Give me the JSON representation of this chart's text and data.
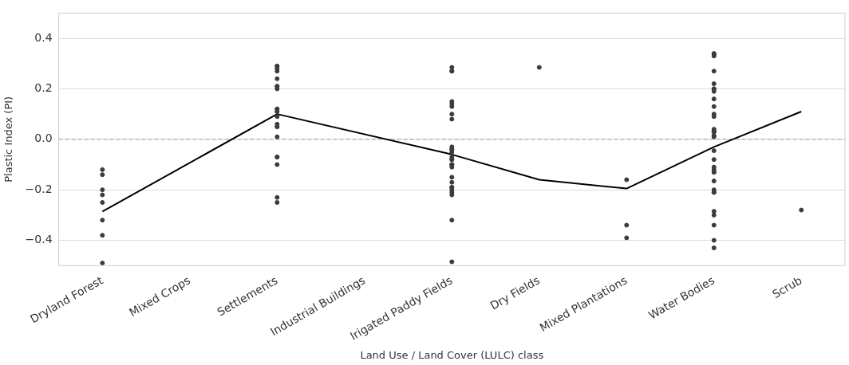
{
  "chart_data": {
    "type": "scatter",
    "xlabel": "Land Use / Land Cover (LULC) class",
    "ylabel": "Plastic Index (PI)",
    "categories": [
      "Dryland Forest",
      "Mixed Crops",
      "Settlements",
      "Industrial Buildings",
      "Irigated Paddy Fields",
      "Dry Fields",
      "Mixed Plantations",
      "Water Bodies",
      "Scrub"
    ],
    "ylim": [
      -0.5,
      0.5
    ],
    "yticks": [
      {
        "value": -0.4,
        "label": "−0.4"
      },
      {
        "value": -0.2,
        "label": "−0.2"
      },
      {
        "value": 0,
        "label": "0.0"
      },
      {
        "value": 0.2,
        "label": "0.2"
      },
      {
        "value": 0.4,
        "label": "0.4"
      }
    ],
    "grid": "y",
    "legend": false,
    "ref_lines": [
      {
        "axis": "y",
        "value": 0,
        "color": "#999999",
        "line_style": "dashed"
      }
    ],
    "series": [
      {
        "color": "#3c3c3c",
        "marker": "circle",
        "x": [
          "Dryland Forest",
          "Dryland Forest",
          "Dryland Forest",
          "Dryland Forest",
          "Dryland Forest",
          "Dryland Forest",
          "Dryland Forest",
          "Dryland Forest",
          "Settlements",
          "Settlements",
          "Settlements",
          "Settlements",
          "Settlements",
          "Settlements",
          "Settlements",
          "Settlements",
          "Settlements",
          "Settlements",
          "Settlements",
          "Settlements",
          "Settlements",
          "Settlements",
          "Settlements",
          "Settlements",
          "Settlements",
          "Settlements",
          "Settlements",
          "Settlements",
          "Settlements",
          "Settlements",
          "Irigated Paddy Fields",
          "Irigated Paddy Fields",
          "Irigated Paddy Fields",
          "Irigated Paddy Fields",
          "Irigated Paddy Fields",
          "Irigated Paddy Fields",
          "Irigated Paddy Fields",
          "Irigated Paddy Fields",
          "Irigated Paddy Fields",
          "Irigated Paddy Fields",
          "Irigated Paddy Fields",
          "Irigated Paddy Fields",
          "Irigated Paddy Fields",
          "Irigated Paddy Fields",
          "Irigated Paddy Fields",
          "Irigated Paddy Fields",
          "Irigated Paddy Fields",
          "Irigated Paddy Fields",
          "Irigated Paddy Fields",
          "Irigated Paddy Fields",
          "Irigated Paddy Fields",
          "Irigated Paddy Fields",
          "Irigated Paddy Fields",
          "Irigated Paddy Fields",
          "Irigated Paddy Fields",
          "Irigated Paddy Fields",
          "Irigated Paddy Fields",
          "Irigated Paddy Fields",
          "Dry Fields",
          "Mixed Plantations",
          "Mixed Plantations",
          "Mixed Plantations",
          "Water Bodies",
          "Water Bodies",
          "Water Bodies",
          "Water Bodies",
          "Water Bodies",
          "Water Bodies",
          "Water Bodies",
          "Water Bodies",
          "Water Bodies",
          "Water Bodies",
          "Water Bodies",
          "Water Bodies",
          "Water Bodies",
          "Water Bodies",
          "Water Bodies",
          "Water Bodies",
          "Water Bodies",
          "Water Bodies",
          "Water Bodies",
          "Water Bodies",
          "Water Bodies",
          "Water Bodies",
          "Water Bodies",
          "Water Bodies",
          "Water Bodies",
          "Water Bodies",
          "Water Bodies",
          "Water Bodies",
          "Water Bodies",
          "Water Bodies",
          "Water Bodies",
          "Water Bodies",
          "Water Bodies",
          "Water Bodies",
          "Scrub"
        ],
        "values": [
          -0.12,
          -0.14,
          -0.2,
          -0.22,
          -0.25,
          -0.32,
          -0.38,
          -0.49,
          0.29,
          0.29,
          0.28,
          0.27,
          0.24,
          0.21,
          0.21,
          0.2,
          0.11,
          0.12,
          0.12,
          0.11,
          0.09,
          0.06,
          0.05,
          0.05,
          0.01,
          -0.07,
          -0.07,
          -0.1,
          -0.25,
          -0.23,
          0.285,
          0.27,
          0.27,
          0.15,
          0.14,
          0.13,
          0.1,
          0.08,
          -0.03,
          -0.04,
          -0.04,
          -0.05,
          -0.07,
          -0.08,
          -0.08,
          -0.1,
          -0.1,
          -0.1,
          -0.11,
          -0.15,
          -0.17,
          -0.19,
          -0.19,
          -0.2,
          -0.21,
          -0.22,
          -0.32,
          -0.485,
          0.285,
          -0.16,
          -0.34,
          -0.39,
          0.34,
          0.335,
          0.33,
          0.27,
          0.22,
          0.2,
          0.2,
          0.19,
          0.16,
          0.13,
          0.1,
          0.09,
          0.04,
          0.03,
          0.03,
          0.03,
          0.03,
          0.015,
          0.01,
          -0.045,
          -0.08,
          -0.11,
          -0.12,
          -0.13,
          -0.13,
          -0.165,
          -0.2,
          -0.21,
          -0.21,
          -0.285,
          -0.3,
          -0.34,
          -0.4,
          -0.43,
          -0.28
        ]
      },
      {
        "type": "line",
        "color": "#000000",
        "marker": "none",
        "line_style": "solid",
        "values": [
          -0.286,
          null,
          0.1,
          null,
          -0.06,
          -0.16,
          -0.195,
          -0.03,
          0.11
        ]
      }
    ]
  }
}
